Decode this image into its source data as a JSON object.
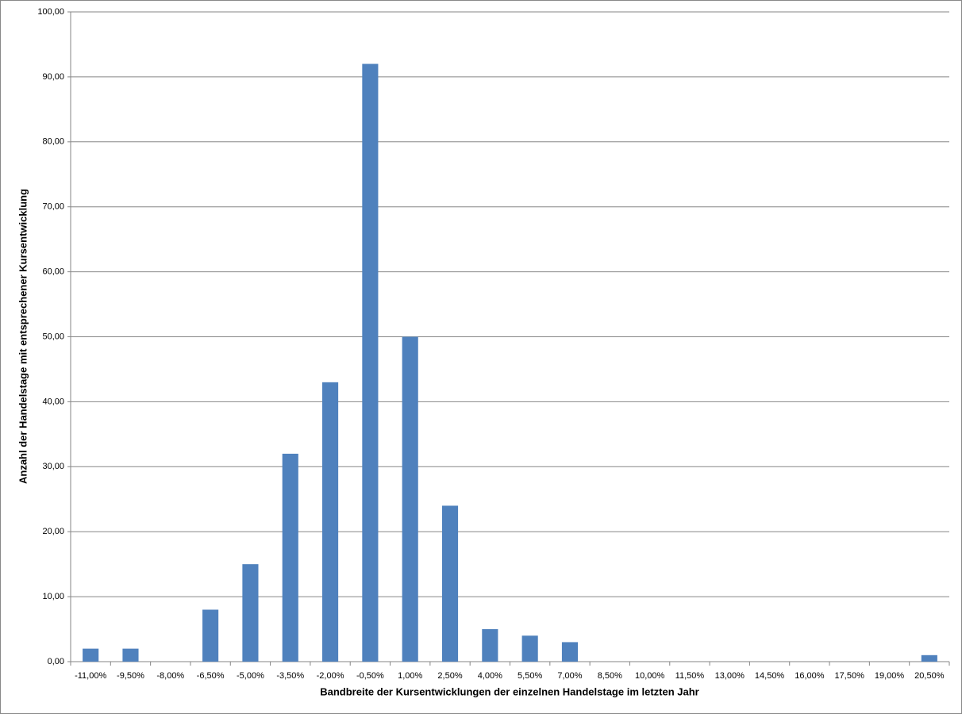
{
  "chart_data": {
    "type": "bar",
    "x_label": "Bandbreite der Kursentwicklungen der einzelnen Handelstage im letzten Jahr",
    "y_label": "Anzahl der Handelstage mit entsprechener Kursentwicklung",
    "categories": [
      "-11,00%",
      "-9,50%",
      "-8,00%",
      "-6,50%",
      "-5,00%",
      "-3,50%",
      "-2,00%",
      "-0,50%",
      "1,00%",
      "2,50%",
      "4,00%",
      "5,50%",
      "7,00%",
      "8,50%",
      "10,00%",
      "11,50%",
      "13,00%",
      "14,50%",
      "16,00%",
      "17,50%",
      "19,00%",
      "20,50%"
    ],
    "values": [
      2,
      2,
      0,
      8,
      15,
      32,
      43,
      92,
      50,
      24,
      5,
      4,
      3,
      0,
      0,
      0,
      0,
      0,
      0,
      0,
      0,
      1
    ],
    "color": "#4f81bd",
    "ylim": [
      0,
      100
    ],
    "yticks": [
      {
        "value": 0,
        "label": "0,00"
      },
      {
        "value": 10,
        "label": "10,00"
      },
      {
        "value": 20,
        "label": "20,00"
      },
      {
        "value": 30,
        "label": "30,00"
      },
      {
        "value": 40,
        "label": "40,00"
      },
      {
        "value": 50,
        "label": "50,00"
      },
      {
        "value": 60,
        "label": "60,00"
      },
      {
        "value": 70,
        "label": "70,00"
      },
      {
        "value": 80,
        "label": "80,00"
      },
      {
        "value": 90,
        "label": "90,00"
      },
      {
        "value": 100,
        "label": "100,00"
      }
    ],
    "grid": true
  }
}
